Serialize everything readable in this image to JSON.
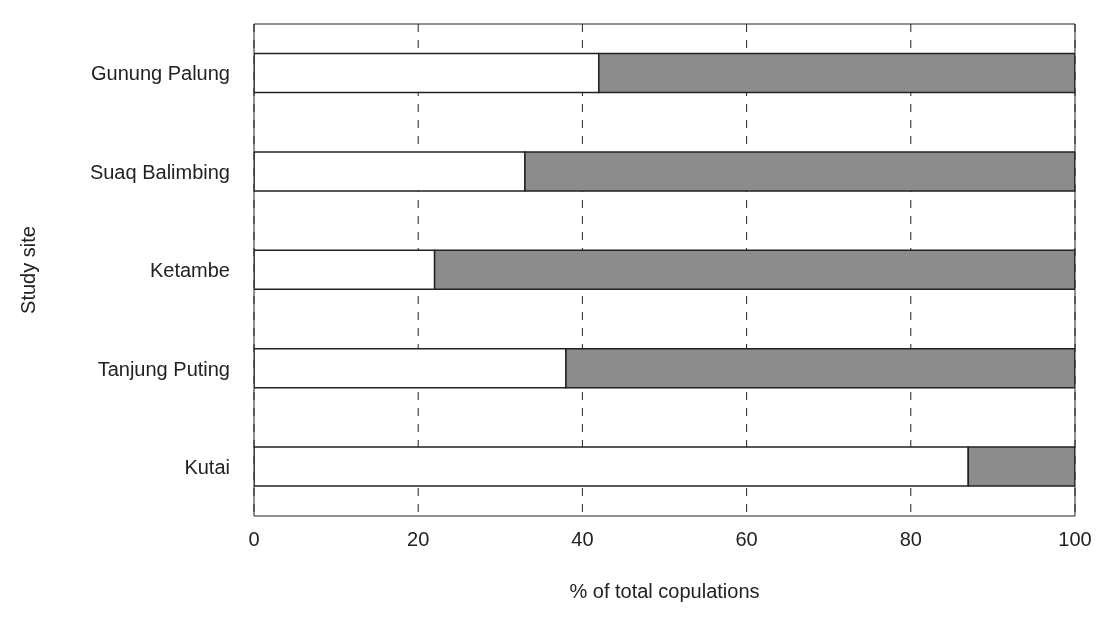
{
  "chart_data": {
    "type": "bar",
    "orientation": "horizontal",
    "stacked": true,
    "xlabel": "% of total copulations",
    "ylabel": "Study site",
    "categories": [
      "Gunung Palung",
      "Suaq Balimbing",
      "Ketambe",
      "Tanjung Puting",
      "Kutai"
    ],
    "series": [
      {
        "color": "#ffffff",
        "values": [
          42,
          33,
          22,
          38,
          87
        ]
      },
      {
        "color": "#8c8c8c",
        "values": [
          58,
          67,
          78,
          62,
          13
        ]
      }
    ],
    "xlim": [
      0,
      100
    ],
    "xticks": [
      0,
      20,
      40,
      60,
      80,
      100
    ],
    "grid": "x",
    "line_style": "dashed",
    "legend": false
  }
}
